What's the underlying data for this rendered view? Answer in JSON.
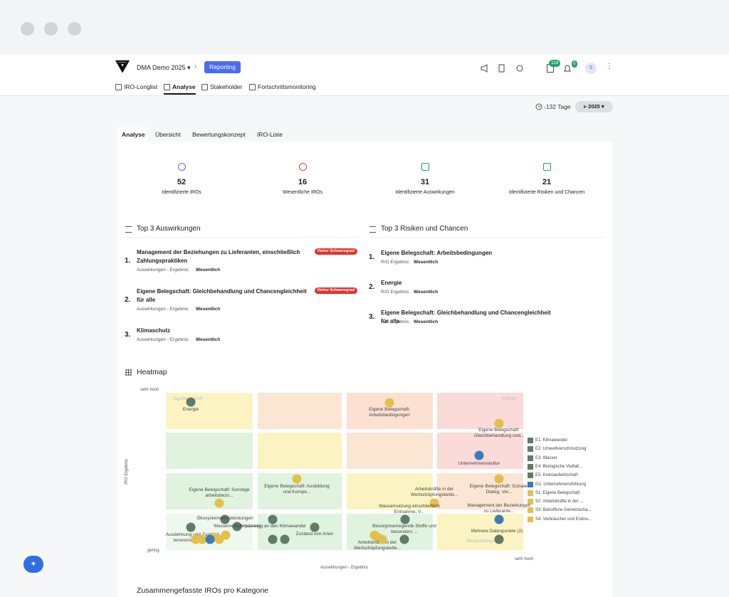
{
  "header": {
    "project": "DMA Demo 2025",
    "badge": "Reporting",
    "notifications": "118",
    "alerts": "0",
    "avatar": "S"
  },
  "nav": [
    "IRO-Longlist",
    "Analyse",
    "Stakeholder",
    "Fortschrittsmonitoring"
  ],
  "toolbar": {
    "days": "-132 Tage",
    "year": "2025"
  },
  "tabs": [
    "Analyse",
    "Übersicht",
    "Bewertungskonzept",
    "IRO-Liste"
  ],
  "kpis": [
    {
      "value": "52",
      "label": "Identifizierte IROs"
    },
    {
      "value": "16",
      "label": "Wesentliche IROs"
    },
    {
      "value": "31",
      "label": "Identifizierte Auswirkungen"
    },
    {
      "value": "21",
      "label": "Identifizierte Risiken und Chancen"
    }
  ],
  "top_impacts": {
    "title": "Top 3 Auswirkungen",
    "items": [
      {
        "rank": "1.",
        "title": "Management der Beziehungen zu Lieferanten, einschließlich Zahlungspraktiken",
        "tag": "Hoher Schweregrad",
        "meta": "Auswirkungen - Ergebnis:",
        "result": "Wesentlich"
      },
      {
        "rank": "2.",
        "title": "Eigene Belegschaft: Gleichbehandlung und Chancengleichheit für alle",
        "tag": "Hoher Schweregrad",
        "meta": "Auswirkungen - Ergebnis:",
        "result": "Wesentlich"
      },
      {
        "rank": "3.",
        "title": "Klimaschutz",
        "meta": "Auswirkungen - Ergebnis:",
        "result": "Wesentlich"
      }
    ]
  },
  "top_risks": {
    "title": "Top 3 Risiken und Chancen",
    "items": [
      {
        "rank": "1.",
        "title": "Eigene Belegschaft: Arbeitsbedingungen",
        "meta": "R/O Ergebnis:",
        "result": "Wesentlich"
      },
      {
        "rank": "2.",
        "title": "Energie",
        "meta": "R/O Ergebnis:",
        "result": "Wesentlich"
      },
      {
        "rank": "3.",
        "title": "Eigene Belegschaft: Gleichbehandlung und Chancengleichheit für alle",
        "meta": "R/O Ergebnis:",
        "result": "Wesentlich"
      }
    ]
  },
  "heatmap": {
    "title": "Heatmap",
    "y_axis": "IRO Ergebnis",
    "x_axis": "Auswirkungen - Ergebnis",
    "y_high": "sehr hoch",
    "y_low": "gering",
    "x_high": "sehr hoch",
    "zone_top_left": "Signifikant CAP",
    "zone_top_right": "Kritisch",
    "zone_bottom_right": "Beobachtungsliste",
    "legend": [
      {
        "name": "E1: Klimawandel",
        "color": "#5f7b69"
      },
      {
        "name": "E2: Umweltverschmutzung",
        "color": "#5f7b69"
      },
      {
        "name": "E3: Wasser",
        "color": "#5f7b69"
      },
      {
        "name": "E4: Biologische Vielfalt...",
        "color": "#5f7b69"
      },
      {
        "name": "E5: Kreislaufwirtschaft",
        "color": "#5f7b69"
      },
      {
        "name": "G1: Unternehmensführung",
        "color": "#3d7bb5"
      },
      {
        "name": "S1: Eigene Belegschaft",
        "color": "#e3c04c"
      },
      {
        "name": "S2: Arbeitskräfte in der ...",
        "color": "#e3c04c"
      },
      {
        "name": "S3: Betroffene Gemeinscha...",
        "color": "#e3c04c"
      },
      {
        "name": "S4: Verbraucher und Endnu...",
        "color": "#e3c04c"
      }
    ],
    "points": [
      "Energie",
      "Eigene Belegschaft: Arbeitsbedingungen",
      "Eigene Belegschaft: Gleichbehandlung und...",
      "Unternehmenskultur",
      "Eigene Belegschaft: Sonstige arbeitsbezo...",
      "Eigene Belegschaft: Ausbildung und Kompe...",
      "Arbeitskräfte in der Wertschöpfungskette...",
      "Eigene Belegschaft: Soziaier Dialog, Ver...",
      "Management der Beziehungen zu Lieferante...",
      "Ökosystemdienstleistungen",
      "Wasserverschmutzung",
      "Anpassung an den Klimawandel",
      "Zustand von Arten",
      "Wassernutzung einschließlich Entnahme, V...",
      "Besorgniserregende Stoffe und besonders ...",
      "Arbeitskräfte in der Wertschöpfungskette...",
      "Mehrere Datenpunkte (2)",
      "Ausdehnung und Zustand terrestrischer un..."
    ]
  },
  "next_section": "Zusammengefasste IROs pro Kategorie"
}
